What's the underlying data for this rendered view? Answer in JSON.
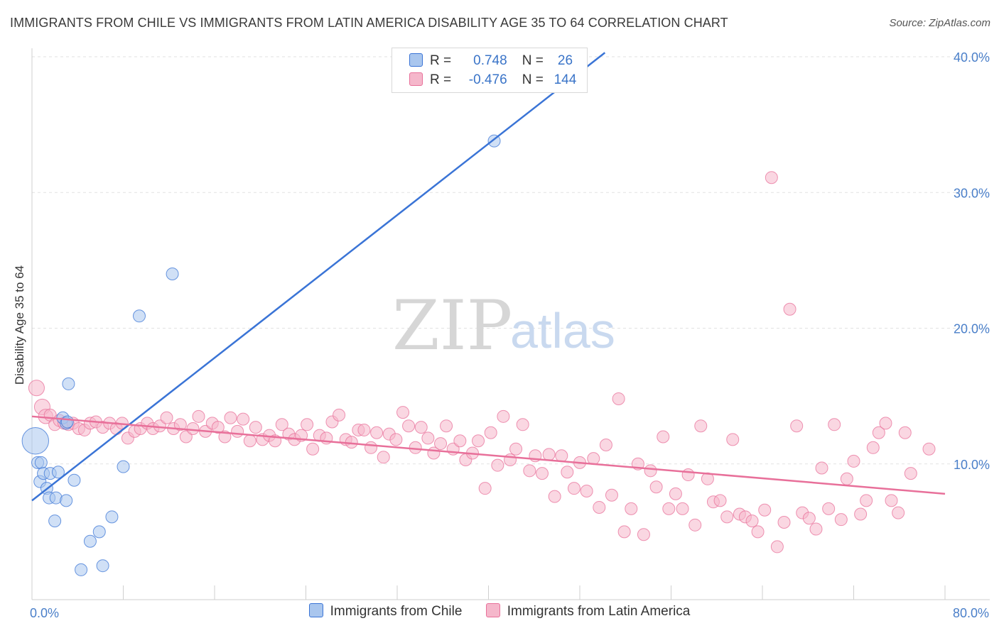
{
  "title": "IMMIGRANTS FROM CHILE VS IMMIGRANTS FROM LATIN AMERICA DISABILITY AGE 35 TO 64 CORRELATION CHART",
  "source": "Source: ZipAtlas.com",
  "watermark": {
    "zip": "ZIP",
    "atlas": "atlas"
  },
  "colors": {
    "blue": "#3a74d6",
    "blue_fill": "#a9c6ee",
    "pink": "#e8709a",
    "pink_fill": "#f5b7cb",
    "tick": "#4a7fc9"
  },
  "legend": {
    "rows": [
      {
        "r_label": "R =",
        "r_value": "0.748",
        "n_label": "N =",
        "n_value": "26"
      },
      {
        "r_label": "R =",
        "r_value": "-0.476",
        "n_label": "N =",
        "n_value": "144"
      }
    ]
  },
  "bottom_legend": [
    "Immigrants from Chile",
    "Immigrants from Latin America"
  ],
  "chart_data": {
    "type": "scatter",
    "title": "IMMIGRANTS FROM CHILE VS IMMIGRANTS FROM LATIN AMERICA DISABILITY AGE 35 TO 64 CORRELATION CHART",
    "xlabel": "",
    "ylabel": "Disability Age 35 to 64",
    "xlim": [
      0,
      80
    ],
    "ylim": [
      0,
      40
    ],
    "x_tick_labels": [
      "0.0%",
      "80.0%"
    ],
    "y_ticks": [
      10,
      20,
      30,
      40
    ],
    "y_tick_labels": [
      "10.0%",
      "20.0%",
      "30.0%",
      "40.0%"
    ],
    "grid": true,
    "legend_position": "top-center",
    "series": [
      {
        "name": "Immigrants from Chile",
        "color": "#3a74d6",
        "trend": {
          "x": [
            0,
            50.2
          ],
          "y": [
            7.3,
            40.3
          ]
        },
        "points": [
          [
            0.3,
            11.7,
            2.2
          ],
          [
            0.5,
            10.1,
            1
          ],
          [
            0.7,
            8.7,
            1
          ],
          [
            0.8,
            10.1,
            1
          ],
          [
            1.0,
            9.3,
            1
          ],
          [
            1.3,
            8.2,
            1
          ],
          [
            1.5,
            7.5,
            1
          ],
          [
            1.6,
            9.3,
            1
          ],
          [
            2.0,
            5.8,
            1
          ],
          [
            2.1,
            7.5,
            1
          ],
          [
            2.3,
            9.4,
            1
          ],
          [
            2.7,
            13.4,
            1
          ],
          [
            3.0,
            13.0,
            1
          ],
          [
            3.0,
            7.3,
            1
          ],
          [
            3.2,
            15.9,
            1
          ],
          [
            3.7,
            8.8,
            1
          ],
          [
            4.3,
            2.2,
            1
          ],
          [
            5.1,
            4.3,
            1
          ],
          [
            5.9,
            5.0,
            1
          ],
          [
            6.2,
            2.5,
            1
          ],
          [
            7.0,
            6.1,
            1
          ],
          [
            8.0,
            9.8,
            1
          ],
          [
            9.4,
            20.9,
            1
          ],
          [
            12.3,
            24.0,
            1
          ],
          [
            40.5,
            33.8,
            1
          ],
          [
            3.1,
            13.1,
            1
          ]
        ]
      },
      {
        "name": "Immigrants from Latin America",
        "color": "#e8709a",
        "trend": {
          "x": [
            0,
            80
          ],
          "y": [
            13.5,
            7.8
          ]
        },
        "points": [
          [
            0.4,
            15.6,
            1.3
          ],
          [
            0.9,
            14.2,
            1.3
          ],
          [
            1.2,
            13.5,
            1.2
          ],
          [
            1.6,
            13.6,
            1
          ],
          [
            2.0,
            12.9,
            1
          ],
          [
            2.4,
            13.2,
            1
          ],
          [
            2.8,
            13.0,
            1
          ],
          [
            3.2,
            12.9,
            1
          ],
          [
            3.6,
            13.0,
            1
          ],
          [
            4.1,
            12.6,
            1
          ],
          [
            4.6,
            12.5,
            1
          ],
          [
            5.1,
            13.0,
            1
          ],
          [
            5.6,
            13.1,
            1
          ],
          [
            6.2,
            12.7,
            1
          ],
          [
            6.8,
            13.0,
            1
          ],
          [
            7.4,
            12.6,
            1
          ],
          [
            7.9,
            13.0,
            1
          ],
          [
            8.4,
            11.9,
            1
          ],
          [
            9.0,
            12.4,
            1
          ],
          [
            9.5,
            12.6,
            1
          ],
          [
            10.1,
            13.0,
            1
          ],
          [
            10.6,
            12.6,
            1
          ],
          [
            11.2,
            12.8,
            1
          ],
          [
            11.8,
            13.4,
            1
          ],
          [
            12.4,
            12.6,
            1
          ],
          [
            13.0,
            12.9,
            1
          ],
          [
            13.5,
            12.0,
            1
          ],
          [
            14.1,
            12.6,
            1
          ],
          [
            14.6,
            13.5,
            1
          ],
          [
            15.2,
            12.4,
            1
          ],
          [
            15.8,
            13.0,
            1
          ],
          [
            16.3,
            12.7,
            1
          ],
          [
            16.9,
            12.0,
            1
          ],
          [
            17.4,
            13.4,
            1
          ],
          [
            18.0,
            12.4,
            1
          ],
          [
            18.5,
            13.3,
            1
          ],
          [
            19.1,
            11.7,
            1
          ],
          [
            19.6,
            12.7,
            1
          ],
          [
            20.2,
            11.8,
            1
          ],
          [
            20.8,
            12.1,
            1
          ],
          [
            21.3,
            11.7,
            1
          ],
          [
            21.9,
            12.9,
            1
          ],
          [
            22.5,
            12.2,
            1
          ],
          [
            23.0,
            11.8,
            1
          ],
          [
            23.6,
            12.1,
            1
          ],
          [
            24.1,
            12.9,
            1
          ],
          [
            24.6,
            11.1,
            1
          ],
          [
            25.2,
            12.1,
            1
          ],
          [
            25.8,
            11.9,
            1
          ],
          [
            26.3,
            13.1,
            1
          ],
          [
            26.9,
            13.6,
            1
          ],
          [
            27.5,
            11.8,
            1
          ],
          [
            28.0,
            11.6,
            1
          ],
          [
            28.6,
            12.5,
            1
          ],
          [
            29.1,
            12.5,
            1
          ],
          [
            29.7,
            11.2,
            1
          ],
          [
            30.2,
            12.3,
            1
          ],
          [
            30.8,
            10.5,
            1
          ],
          [
            31.3,
            12.2,
            1
          ],
          [
            31.9,
            11.8,
            1
          ],
          [
            32.5,
            13.8,
            1
          ],
          [
            33.0,
            12.8,
            1
          ],
          [
            33.6,
            11.2,
            1
          ],
          [
            34.1,
            12.7,
            1
          ],
          [
            34.7,
            11.9,
            1
          ],
          [
            35.2,
            10.8,
            1
          ],
          [
            35.8,
            11.5,
            1
          ],
          [
            36.3,
            12.8,
            1
          ],
          [
            36.9,
            11.1,
            1
          ],
          [
            37.5,
            11.7,
            1
          ],
          [
            38.0,
            10.3,
            1
          ],
          [
            38.6,
            10.8,
            1
          ],
          [
            39.1,
            11.7,
            1
          ],
          [
            39.7,
            8.2,
            1
          ],
          [
            40.2,
            12.3,
            1
          ],
          [
            40.8,
            9.9,
            1
          ],
          [
            41.3,
            13.5,
            1
          ],
          [
            41.9,
            10.3,
            1
          ],
          [
            42.4,
            11.1,
            1
          ],
          [
            43.0,
            12.9,
            1
          ],
          [
            43.6,
            9.5,
            1
          ],
          [
            44.1,
            10.6,
            1
          ],
          [
            44.7,
            9.3,
            1
          ],
          [
            45.3,
            10.7,
            1
          ],
          [
            45.8,
            7.6,
            1
          ],
          [
            46.4,
            10.6,
            1
          ],
          [
            46.9,
            9.4,
            1
          ],
          [
            47.5,
            8.2,
            1
          ],
          [
            48.0,
            10.1,
            1
          ],
          [
            48.6,
            8.0,
            1
          ],
          [
            49.2,
            10.4,
            1
          ],
          [
            49.7,
            6.8,
            1
          ],
          [
            50.3,
            11.4,
            1
          ],
          [
            50.8,
            7.7,
            1
          ],
          [
            51.4,
            14.8,
            1
          ],
          [
            51.9,
            5.0,
            1
          ],
          [
            52.5,
            6.7,
            1
          ],
          [
            53.1,
            10.0,
            1
          ],
          [
            53.6,
            4.8,
            1
          ],
          [
            54.2,
            9.5,
            1
          ],
          [
            54.7,
            8.3,
            1
          ],
          [
            55.3,
            12.0,
            1
          ],
          [
            55.8,
            6.7,
            1
          ],
          [
            56.4,
            7.8,
            1
          ],
          [
            57.0,
            6.7,
            1
          ],
          [
            57.5,
            9.2,
            1
          ],
          [
            58.1,
            5.5,
            1
          ],
          [
            58.6,
            12.8,
            1
          ],
          [
            59.2,
            8.9,
            1
          ],
          [
            59.7,
            7.2,
            1
          ],
          [
            60.3,
            7.3,
            1
          ],
          [
            60.9,
            6.1,
            1
          ],
          [
            61.4,
            11.8,
            1
          ],
          [
            62.0,
            6.3,
            1
          ],
          [
            62.5,
            6.1,
            1
          ],
          [
            63.1,
            5.8,
            1
          ],
          [
            63.6,
            5.0,
            1
          ],
          [
            64.2,
            6.6,
            1
          ],
          [
            64.8,
            31.1,
            1
          ],
          [
            65.3,
            3.9,
            1
          ],
          [
            65.9,
            5.7,
            1
          ],
          [
            66.4,
            21.4,
            1
          ],
          [
            67.0,
            12.8,
            1
          ],
          [
            67.5,
            6.4,
            1
          ],
          [
            68.1,
            6.0,
            1
          ],
          [
            68.7,
            5.2,
            1
          ],
          [
            69.2,
            9.7,
            1
          ],
          [
            69.8,
            6.7,
            1
          ],
          [
            70.3,
            12.9,
            1
          ],
          [
            70.9,
            5.9,
            1
          ],
          [
            71.4,
            8.9,
            1
          ],
          [
            72.0,
            10.2,
            1
          ],
          [
            72.6,
            6.3,
            1
          ],
          [
            73.1,
            7.3,
            1
          ],
          [
            73.7,
            11.2,
            1
          ],
          [
            74.2,
            12.3,
            1
          ],
          [
            74.8,
            13.0,
            1
          ],
          [
            75.3,
            7.3,
            1
          ],
          [
            75.9,
            6.4,
            1
          ],
          [
            76.5,
            12.3,
            1
          ],
          [
            77.0,
            9.3,
            1
          ],
          [
            78.6,
            11.1,
            1
          ]
        ]
      }
    ]
  }
}
